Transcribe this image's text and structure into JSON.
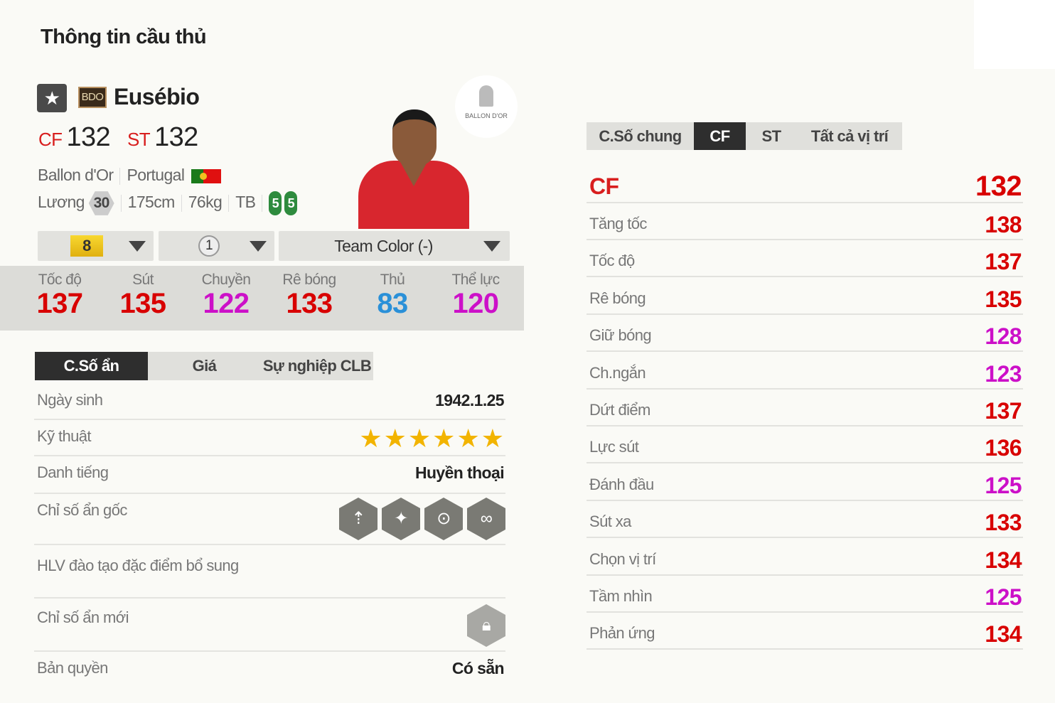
{
  "page_title": "Thông tin cầu thủ",
  "colors": {
    "red": "#d80000",
    "magenta": "#cc10c8",
    "blue": "#2a90d8",
    "dark_tab": "#2e2e2e"
  },
  "player": {
    "name": "Eusébio",
    "season_badge": "BDO",
    "season": "Ballon d'Or",
    "nation": "Portugal",
    "positions": [
      {
        "pos": "CF",
        "ovr": "132"
      },
      {
        "pos": "ST",
        "ovr": "132"
      }
    ],
    "salary_label": "Lương",
    "salary": "30",
    "height": "175cm",
    "weight": "76kg",
    "body": "TB",
    "weak_foot_left": "5",
    "weak_foot_right": "5",
    "logo_text": "BALLON D'OR"
  },
  "selectors": {
    "upgrade": "8",
    "team_level": "1",
    "team_color": "Team Color (-)"
  },
  "main_stats": [
    {
      "label": "Tốc độ",
      "value": "137",
      "color": "#d80000"
    },
    {
      "label": "Sút",
      "value": "135",
      "color": "#d80000"
    },
    {
      "label": "Chuyền",
      "value": "122",
      "color": "#cc10c8"
    },
    {
      "label": "Rê bóng",
      "value": "133",
      "color": "#d80000"
    },
    {
      "label": "Thủ",
      "value": "83",
      "color": "#2a90d8"
    },
    {
      "label": "Thể lực",
      "value": "120",
      "color": "#cc10c8"
    }
  ],
  "left_tabs": [
    "C.Số ẩn",
    "Giá",
    "Sự nghiệp CLB"
  ],
  "info": {
    "birth_label": "Ngày sinh",
    "birth": "1942.1.25",
    "skill_label": "Kỹ thuật",
    "skill_stars": 6,
    "fame_label": "Danh tiếng",
    "fame": "Huyền thoại",
    "traits_label": "Chỉ số ẩn gốc",
    "traits": [
      "long-shot-icon",
      "speed-dribbler-icon",
      "chip-shot-icon",
      "playmaker-icon"
    ],
    "coach_label": "HLV đào tạo đặc điểm bổ sung",
    "new_traits_label": "Chỉ số ẩn mới",
    "license_label": "Bản quyền",
    "license": "Có sẵn"
  },
  "right_tabs": [
    "C.Số chung",
    "CF",
    "ST",
    "Tất cả vị trí"
  ],
  "position_header": {
    "pos": "CF",
    "value": "132"
  },
  "detail_stats": [
    {
      "label": "Tăng tốc",
      "value": "138",
      "color": "#d80000"
    },
    {
      "label": "Tốc độ",
      "value": "137",
      "color": "#d80000"
    },
    {
      "label": "Rê bóng",
      "value": "135",
      "color": "#d80000"
    },
    {
      "label": "Giữ bóng",
      "value": "128",
      "color": "#cc10c8"
    },
    {
      "label": "Ch.ngắn",
      "value": "123",
      "color": "#cc10c8"
    },
    {
      "label": "Dứt điểm",
      "value": "137",
      "color": "#d80000"
    },
    {
      "label": "Lực sút",
      "value": "136",
      "color": "#d80000"
    },
    {
      "label": "Đánh đầu",
      "value": "125",
      "color": "#cc10c8"
    },
    {
      "label": "Sút xa",
      "value": "133",
      "color": "#d80000"
    },
    {
      "label": "Chọn vị trí",
      "value": "134",
      "color": "#d80000"
    },
    {
      "label": "Tầm nhìn",
      "value": "125",
      "color": "#cc10c8"
    },
    {
      "label": "Phản ứng",
      "value": "134",
      "color": "#d80000"
    }
  ]
}
